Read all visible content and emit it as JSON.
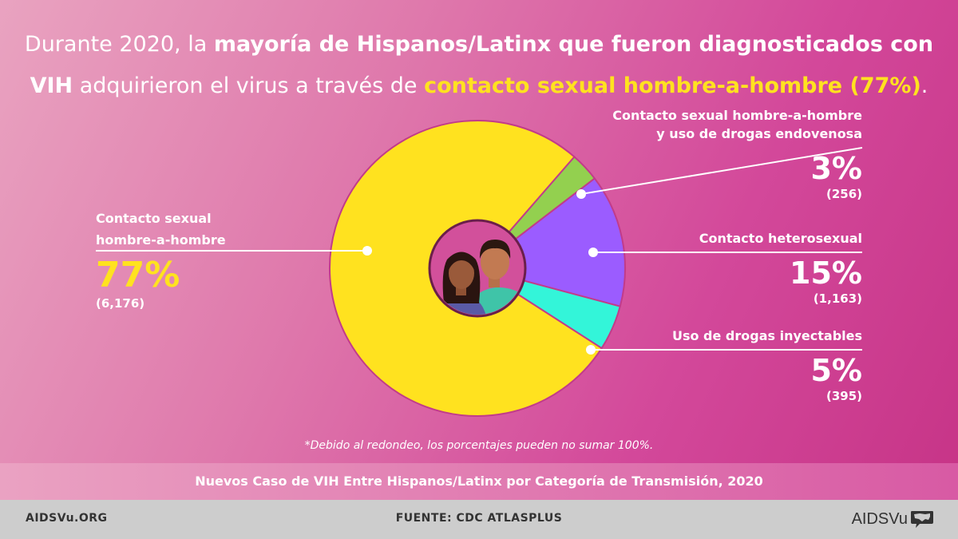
{
  "headline": {
    "p1": "Durante 2020, la ",
    "b1": "mayoría de Hispanos/Latinx que fueron diagnosticados con",
    "b2": "VIH",
    "p2": " adquirieron el virus a través de ",
    "y1": "contacto sexual hombre-a-hombre (77%)",
    "p3": "."
  },
  "colors": {
    "background": "#d85aa4",
    "accent": "#ffe21f",
    "slice_msm": "#ffe21f",
    "slice_msm_idu": "#93d04f",
    "slice_hetero": "#9b5cff",
    "slice_idu": "#33f5d9",
    "center_circle": "#d2509b"
  },
  "chart_data": {
    "type": "pie",
    "title": "Nuevos Caso de VIH Entre Hispanos/Latinx por Categoría de Transmisión, 2020",
    "slices": [
      {
        "label": "Contacto sexual hombre-a-hombre",
        "label_lines": [
          "Contacto sexual",
          "hombre-a-hombre"
        ],
        "percent_label": "77%",
        "count_label": "(6,176)",
        "value": 6176,
        "color": "#ffe21f"
      },
      {
        "label": "Contacto sexual hombre-a-hombre y uso de drogas endovenosa",
        "label_lines": [
          "Contacto sexual hombre-a-hombre",
          "y uso de drogas endovenosa"
        ],
        "percent_label": "3%",
        "count_label": "(256)",
        "value": 256,
        "color": "#93d04f"
      },
      {
        "label": "Contacto heterosexual",
        "label_lines": [
          "Contacto heterosexual"
        ],
        "percent_label": "15%",
        "count_label": "(1,163)",
        "value": 1163,
        "color": "#9b5cff"
      },
      {
        "label": "Uso de drogas inyectables",
        "label_lines": [
          "Uso de drogas inyectables"
        ],
        "percent_label": "5%",
        "count_label": "(395)",
        "value": 395,
        "color": "#33f5d9"
      }
    ],
    "note": "*Debido al redondeo, los porcentajes pueden no sumar 100%."
  },
  "footer": {
    "site": "AIDSVu.ORG",
    "source": "FUENTE: CDC ATLASPLUS",
    "logo": "AIDSVu",
    "logo_icon": "usa-map-speech-bubble-icon"
  },
  "icons": {
    "center": "people-avatars-icon"
  }
}
